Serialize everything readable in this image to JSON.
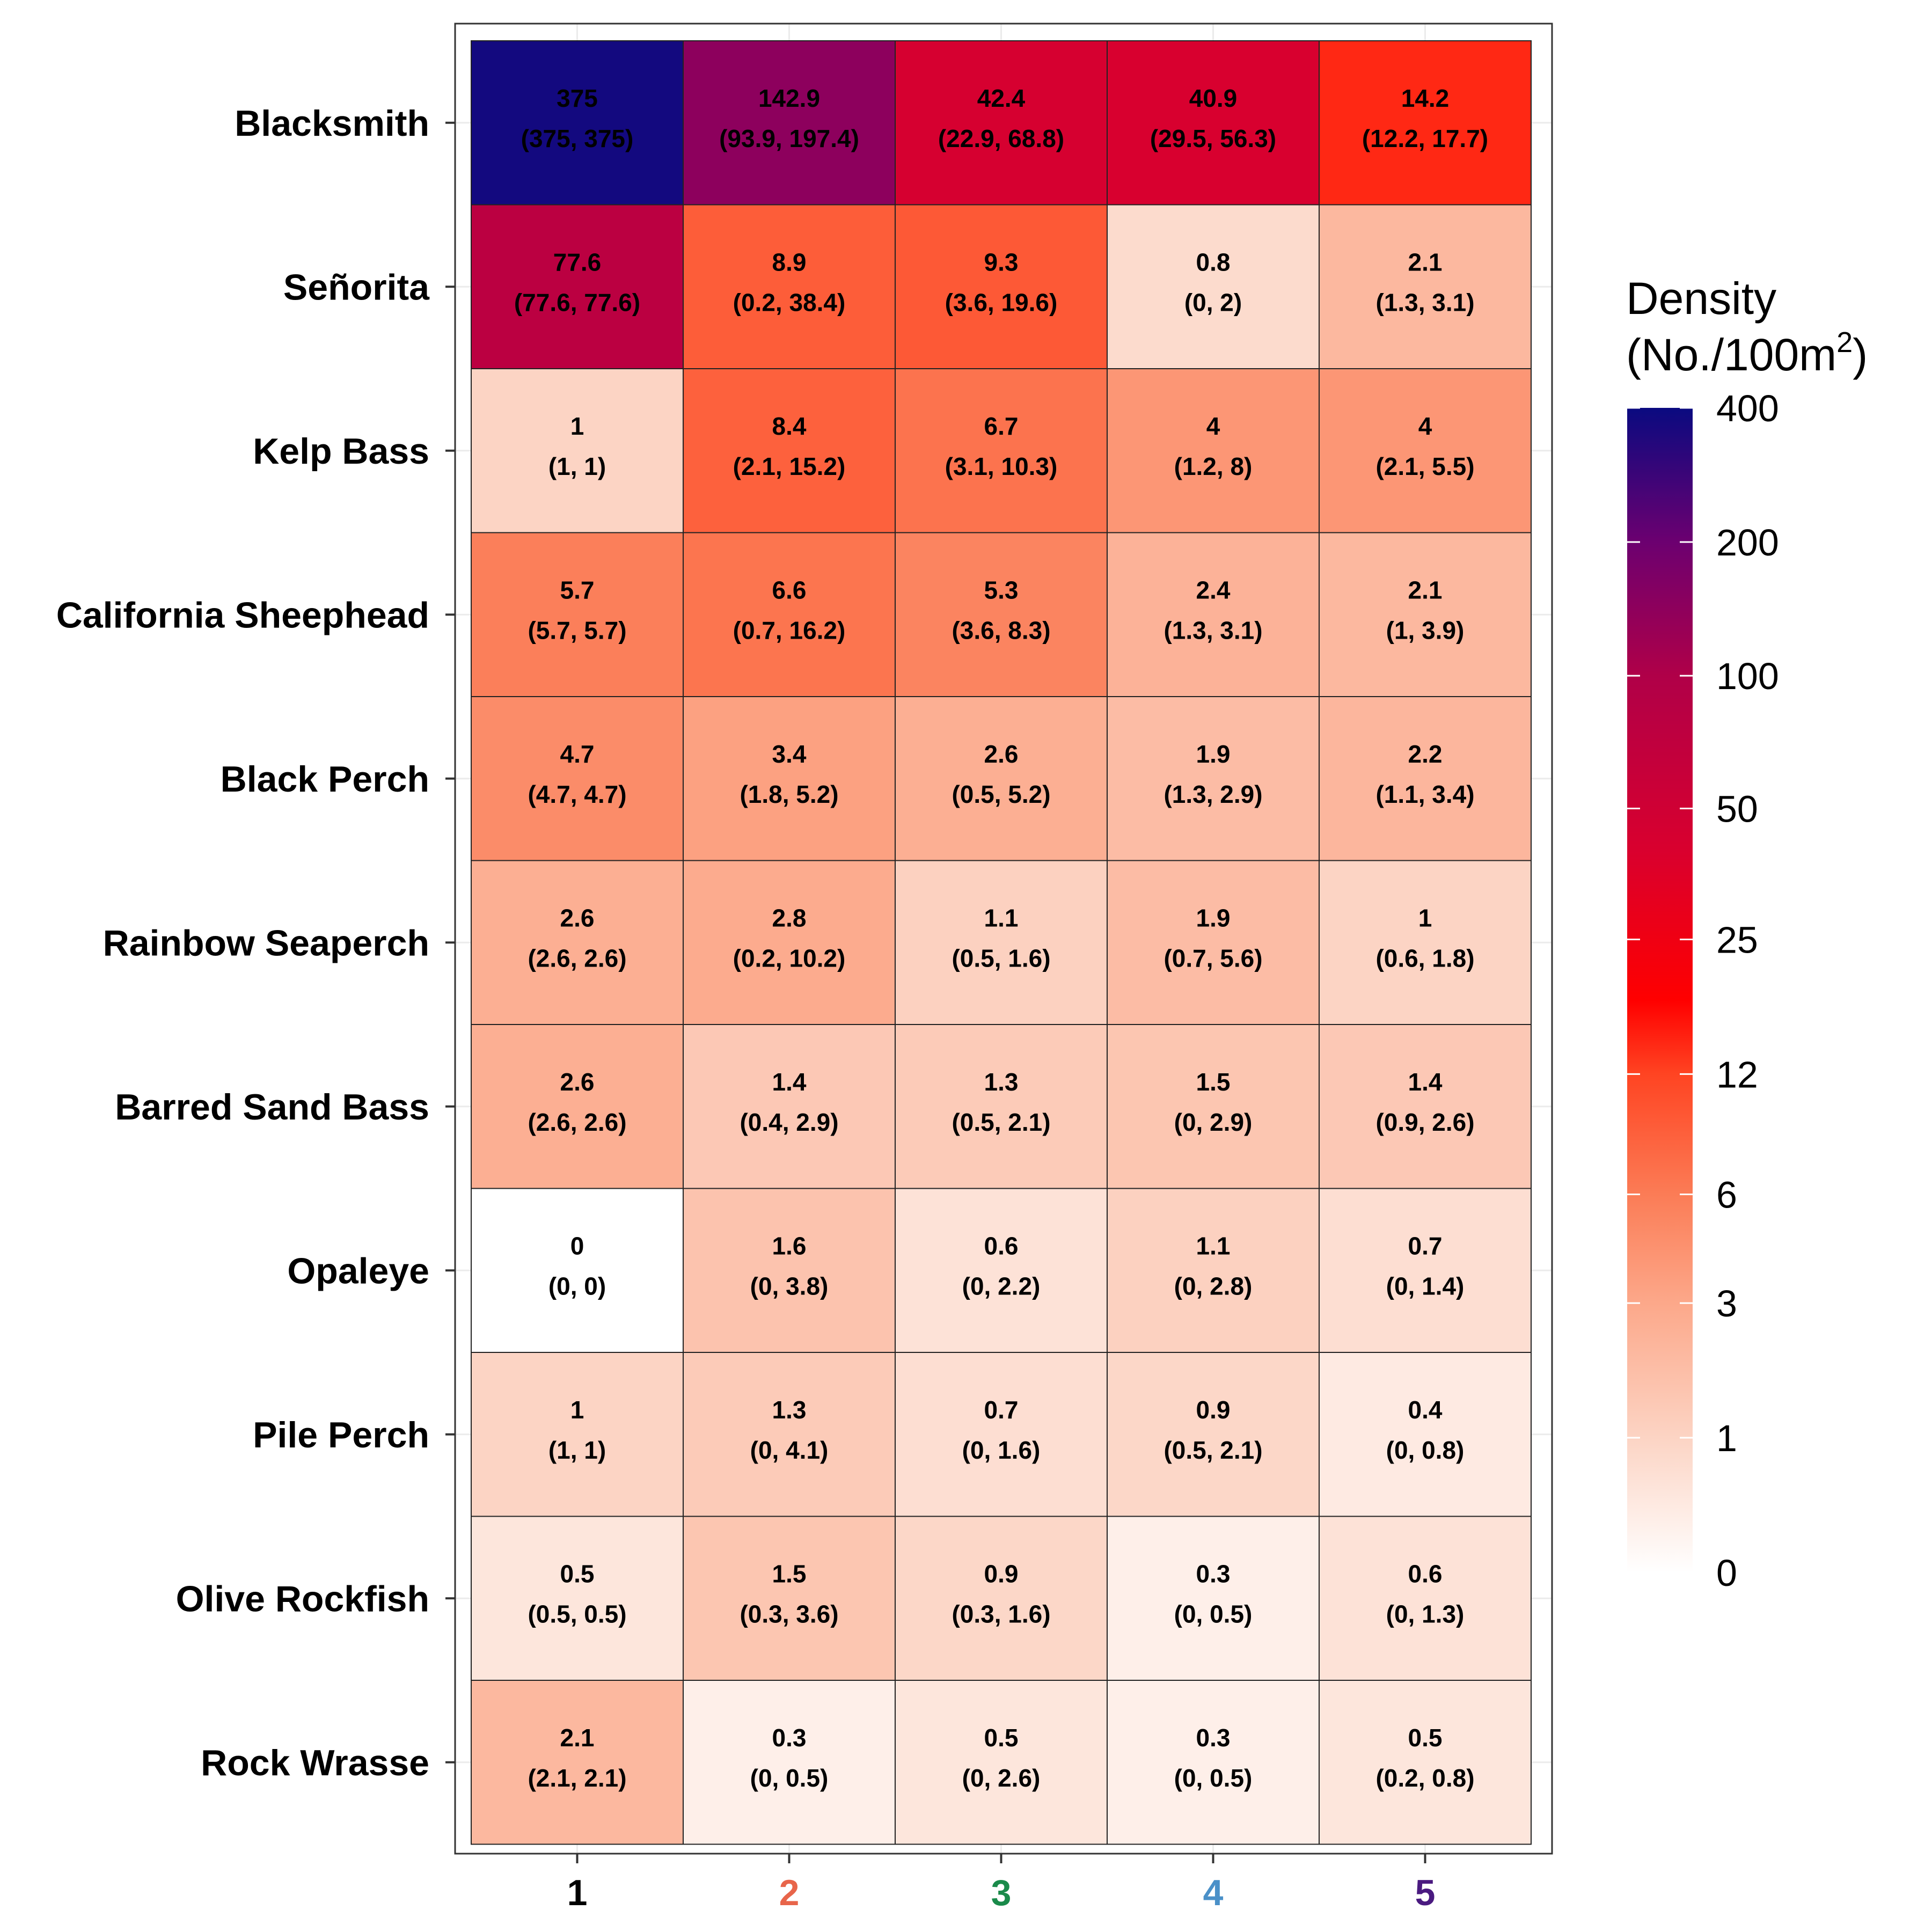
{
  "chart_data": {
    "type": "heatmap",
    "title": "",
    "xlabel": "",
    "ylabel": "",
    "x_categories": [
      "1",
      "2",
      "3",
      "4",
      "5"
    ],
    "x_category_colors": [
      "#000000",
      "#e8654a",
      "#1a8a4a",
      "#4a90c8",
      "#4a1a80"
    ],
    "y_categories": [
      "Blacksmith",
      "Señorita",
      "Kelp Bass",
      "California Sheephead",
      "Black Perch",
      "Rainbow Seaperch",
      "Barred Sand Bass",
      "Opaleye",
      "Pile Perch",
      "Olive Rockfish",
      "Rock Wrasse"
    ],
    "values": [
      [
        375,
        142.9,
        42.4,
        40.9,
        14.2
      ],
      [
        77.6,
        8.9,
        9.3,
        0.8,
        2.1
      ],
      [
        1,
        8.4,
        6.7,
        4,
        4
      ],
      [
        5.7,
        6.6,
        5.3,
        2.4,
        2.1
      ],
      [
        4.7,
        3.4,
        2.6,
        1.9,
        2.2
      ],
      [
        2.6,
        2.8,
        1.1,
        1.9,
        1
      ],
      [
        2.6,
        1.4,
        1.3,
        1.5,
        1.4
      ],
      [
        0,
        1.6,
        0.6,
        1.1,
        0.7
      ],
      [
        1,
        1.3,
        0.7,
        0.9,
        0.4
      ],
      [
        0.5,
        1.5,
        0.9,
        0.3,
        0.6
      ],
      [
        2.1,
        0.3,
        0.5,
        0.3,
        0.5
      ]
    ],
    "ci": [
      [
        "(375, 375)",
        "(93.9, 197.4)",
        "(22.9, 68.8)",
        "(29.5, 56.3)",
        "(12.2, 17.7)"
      ],
      [
        "(77.6, 77.6)",
        "(0.2, 38.4)",
        "(3.6, 19.6)",
        "(0, 2)",
        "(1.3, 3.1)"
      ],
      [
        "(1, 1)",
        "(2.1, 15.2)",
        "(3.1, 10.3)",
        "(1.2, 8)",
        "(2.1, 5.5)"
      ],
      [
        "(5.7, 5.7)",
        "(0.7, 16.2)",
        "(3.6, 8.3)",
        "(1.3, 3.1)",
        "(1, 3.9)"
      ],
      [
        "(4.7, 4.7)",
        "(1.8, 5.2)",
        "(0.5, 5.2)",
        "(1.3, 2.9)",
        "(1.1, 3.4)"
      ],
      [
        "(2.6, 2.6)",
        "(0.2, 10.2)",
        "(0.5, 1.6)",
        "(0.7, 5.6)",
        "(0.6, 1.8)"
      ],
      [
        "(2.6, 2.6)",
        "(0.4, 2.9)",
        "(0.5, 2.1)",
        "(0, 2.9)",
        "(0.9, 2.6)"
      ],
      [
        "(0, 0)",
        "(0, 3.8)",
        "(0, 2.2)",
        "(0, 2.8)",
        "(0, 1.4)"
      ],
      [
        "(1, 1)",
        "(0, 4.1)",
        "(0, 1.6)",
        "(0.5, 2.1)",
        "(0, 0.8)"
      ],
      [
        "(0.5, 0.5)",
        "(0.3, 3.6)",
        "(0.3, 1.6)",
        "(0, 0.5)",
        "(0, 1.3)"
      ],
      [
        "(2.1, 2.1)",
        "(0, 0.5)",
        "(0, 2.6)",
        "(0, 0.5)",
        "(0.2, 0.8)"
      ]
    ],
    "legend": {
      "title_line1": "Density",
      "title_line2_prefix": "(No./100m",
      "title_line2_sup": "2",
      "title_line2_suffix": ")",
      "placement": "right",
      "ticks": [
        "400",
        "200",
        "100",
        "50",
        "25",
        "12",
        "6",
        "3",
        "1",
        "0"
      ],
      "scale": "pseudo-log",
      "color_stops": [
        {
          "value": 0,
          "color": "#ffffff"
        },
        {
          "value": 1,
          "color": "#fcd4c4"
        },
        {
          "value": 3,
          "color": "#fca88a"
        },
        {
          "value": 6,
          "color": "#fb7c56"
        },
        {
          "value": 12,
          "color": "#ff4422"
        },
        {
          "value": 18,
          "color": "#ff0000"
        },
        {
          "value": 40,
          "color": "#d9002e"
        },
        {
          "value": 100,
          "color": "#b00048"
        },
        {
          "value": 200,
          "color": "#6c0070"
        },
        {
          "value": 400,
          "color": "#0a0a80"
        }
      ]
    },
    "grid": true
  }
}
